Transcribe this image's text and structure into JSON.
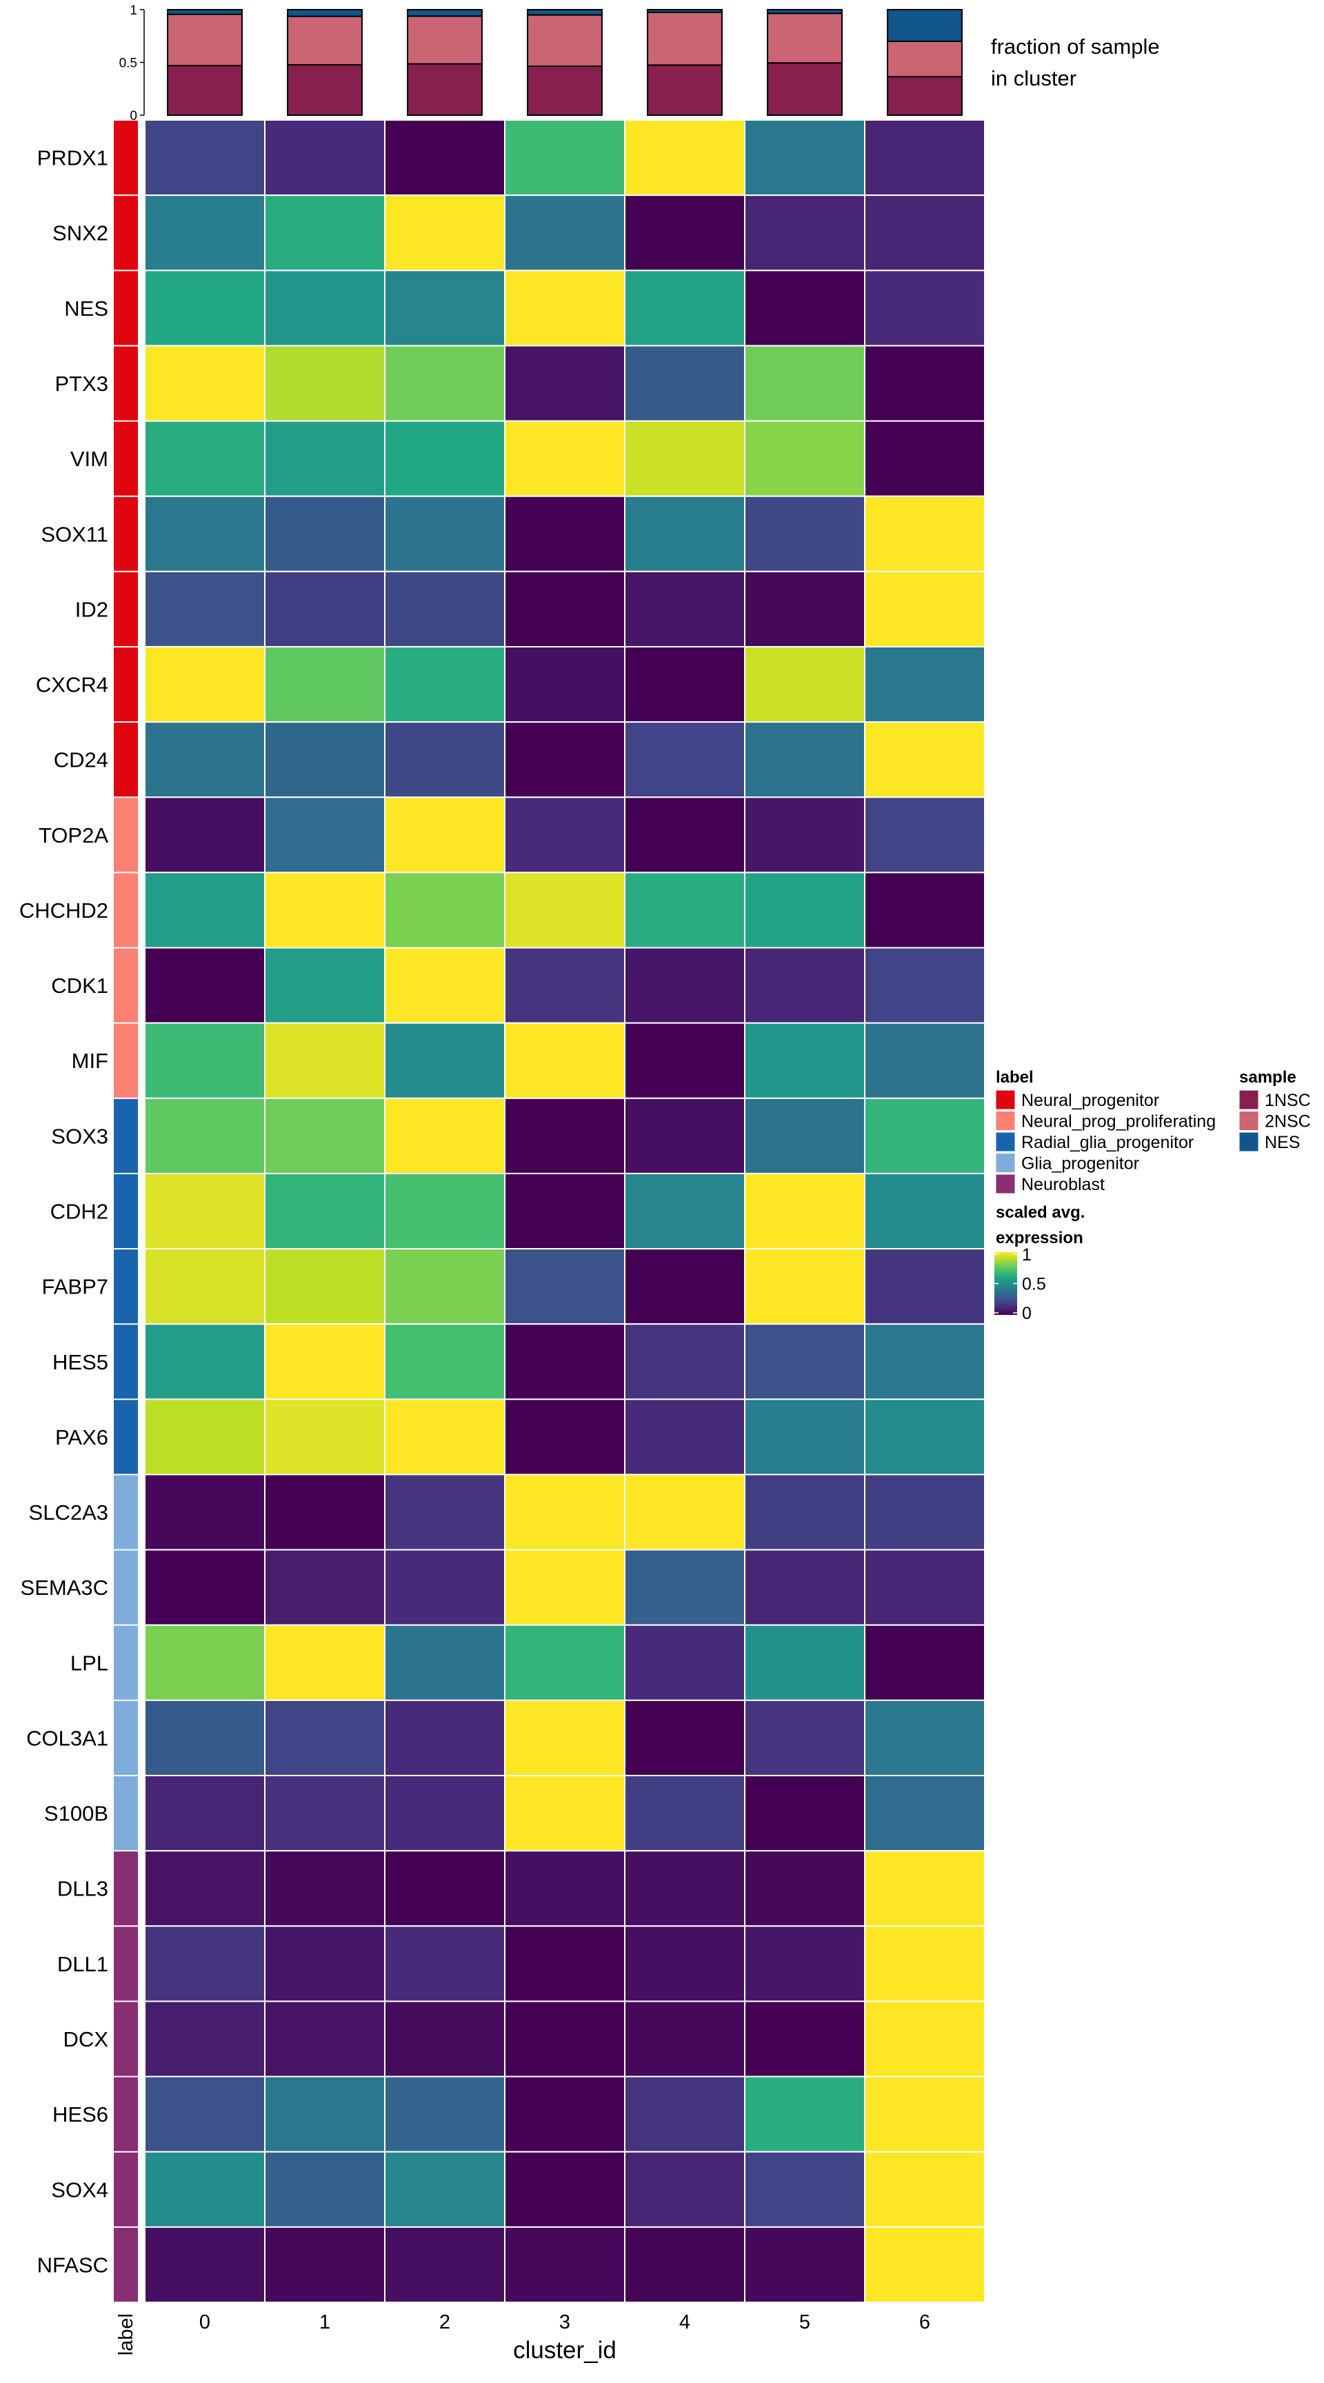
{
  "chart_data": [
    {
      "type": "bar",
      "stacked": true,
      "title": "fraction of sample in cluster",
      "title_lines": [
        "fraction of sample",
        "in cluster"
      ],
      "categories": [
        "0",
        "1",
        "2",
        "3",
        "4",
        "5",
        "6"
      ],
      "ylim": [
        0,
        1
      ],
      "yticks": [
        "0",
        "0.5",
        "1"
      ],
      "series": [
        {
          "name": "1NSC",
          "color": "#88204f",
          "values": [
            0.47,
            0.477,
            0.486,
            0.464,
            0.475,
            0.495,
            0.365
          ]
        },
        {
          "name": "2NSC",
          "color": "#cb6573",
          "values": [
            0.486,
            0.46,
            0.453,
            0.486,
            0.499,
            0.47,
            0.335
          ]
        },
        {
          "name": "NES",
          "color": "#10568a",
          "values": [
            0.044,
            0.063,
            0.061,
            0.05,
            0.026,
            0.035,
            0.3
          ]
        }
      ]
    },
    {
      "type": "heatmap",
      "xlabel": "cluster_id",
      "row_annotation_label": "label",
      "x_categories": [
        "0",
        "1",
        "2",
        "3",
        "4",
        "5",
        "6"
      ],
      "rows": [
        {
          "gene": "PRDX1",
          "label": "Neural_progenitor",
          "values": [
            0.2,
            0.12,
            0,
            0.68,
            1,
            0.4,
            0.1
          ]
        },
        {
          "gene": "SNX2",
          "label": "Neural_progenitor",
          "values": [
            0.42,
            0.62,
            1,
            0.38,
            0,
            0.1,
            0.1
          ]
        },
        {
          "gene": "NES",
          "label": "Neural_progenitor",
          "values": [
            0.6,
            0.52,
            0.45,
            1,
            0.58,
            0,
            0.12
          ]
        },
        {
          "gene": "PTX3",
          "label": "Neural_progenitor",
          "values": [
            1,
            0.88,
            0.78,
            0.05,
            0.28,
            0.78,
            0
          ]
        },
        {
          "gene": "VIM",
          "label": "Neural_progenitor",
          "values": [
            0.62,
            0.55,
            0.6,
            1,
            0.92,
            0.82,
            0
          ]
        },
        {
          "gene": "SOX11",
          "label": "Neural_progenitor",
          "values": [
            0.4,
            0.28,
            0.38,
            0,
            0.42,
            0.22,
            1
          ]
        },
        {
          "gene": "ID2",
          "label": "Neural_progenitor",
          "values": [
            0.25,
            0.18,
            0.22,
            0,
            0.06,
            0.02,
            1
          ]
        },
        {
          "gene": "CXCR4",
          "label": "Neural_progenitor",
          "values": [
            1,
            0.75,
            0.62,
            0.04,
            0,
            0.92,
            0.4
          ]
        },
        {
          "gene": "CD24",
          "label": "Neural_progenitor",
          "values": [
            0.38,
            0.33,
            0.22,
            0,
            0.2,
            0.38,
            1
          ]
        },
        {
          "gene": "TOP2A",
          "label": "Neural_prog_proliferating",
          "values": [
            0.04,
            0.35,
            1,
            0.12,
            0,
            0.06,
            0.2
          ]
        },
        {
          "gene": "CHCHD2",
          "label": "Neural_prog_proliferating",
          "values": [
            0.55,
            1,
            0.8,
            0.95,
            0.62,
            0.58,
            0
          ]
        },
        {
          "gene": "CDK1",
          "label": "Neural_prog_proliferating",
          "values": [
            0,
            0.55,
            1,
            0.15,
            0.06,
            0.1,
            0.2
          ]
        },
        {
          "gene": "MIF",
          "label": "Neural_prog_proliferating",
          "values": [
            0.68,
            0.95,
            0.48,
            1,
            0,
            0.52,
            0.38
          ]
        },
        {
          "gene": "SOX3",
          "label": "Radial_glia_progenitor",
          "values": [
            0.75,
            0.78,
            1,
            0,
            0.04,
            0.38,
            0.65
          ]
        },
        {
          "gene": "CDH2",
          "label": "Radial_glia_progenitor",
          "values": [
            0.95,
            0.65,
            0.7,
            0,
            0.45,
            1,
            0.48
          ]
        },
        {
          "gene": "FABP7",
          "label": "Radial_glia_progenitor",
          "values": [
            0.94,
            0.9,
            0.8,
            0.25,
            0,
            1,
            0.15
          ]
        },
        {
          "gene": "HES5",
          "label": "Radial_glia_progenitor",
          "values": [
            0.55,
            1,
            0.7,
            0,
            0.15,
            0.25,
            0.4
          ]
        },
        {
          "gene": "PAX6",
          "label": "Radial_glia_progenitor",
          "values": [
            0.9,
            0.95,
            1,
            0,
            0.12,
            0.42,
            0.48
          ]
        },
        {
          "gene": "SLC2A3",
          "label": "Glia_progenitor",
          "values": [
            0.02,
            0,
            0.15,
            1,
            1,
            0.18,
            0.18
          ]
        },
        {
          "gene": "SEMA3C",
          "label": "Glia_progenitor",
          "values": [
            0,
            0.08,
            0.12,
            1,
            0.3,
            0.1,
            0.1
          ]
        },
        {
          "gene": "LPL",
          "label": "Glia_progenitor",
          "values": [
            0.8,
            1,
            0.38,
            0.65,
            0.12,
            0.5,
            0
          ]
        },
        {
          "gene": "COL3A1",
          "label": "Glia_progenitor",
          "values": [
            0.28,
            0.2,
            0.12,
            1,
            0,
            0.15,
            0.4
          ]
        },
        {
          "gene": "S100B",
          "label": "Glia_progenitor",
          "values": [
            0.1,
            0.14,
            0.12,
            1,
            0.18,
            0,
            0.35
          ]
        },
        {
          "gene": "DLL3",
          "label": "Neuroblast",
          "values": [
            0.05,
            0.02,
            0,
            0.04,
            0.04,
            0.02,
            1
          ]
        },
        {
          "gene": "DLL1",
          "label": "Neuroblast",
          "values": [
            0.15,
            0.06,
            0.12,
            0,
            0.04,
            0.06,
            1
          ]
        },
        {
          "gene": "DCX",
          "label": "Neuroblast",
          "values": [
            0.08,
            0.05,
            0.03,
            0,
            0.02,
            0,
            1
          ]
        },
        {
          "gene": "HES6",
          "label": "Neuroblast",
          "values": [
            0.25,
            0.4,
            0.32,
            0,
            0.15,
            0.62,
            1
          ]
        },
        {
          "gene": "SOX4",
          "label": "Neuroblast",
          "values": [
            0.48,
            0.3,
            0.45,
            0,
            0.1,
            0.2,
            1
          ]
        },
        {
          "gene": "NFASC",
          "label": "Neuroblast",
          "values": [
            0.04,
            0.02,
            0.04,
            0.02,
            0.01,
            0.02,
            1
          ]
        }
      ],
      "color_scale": {
        "name": "viridis",
        "title_lines": [
          "scaled avg.",
          "expression"
        ],
        "range": [
          0,
          1
        ],
        "ticks": [
          "0",
          "0.5",
          "1"
        ],
        "stops": [
          "#440154",
          "#482475",
          "#414487",
          "#355f8d",
          "#2a788e",
          "#21918c",
          "#22a884",
          "#44bf70",
          "#7ad151",
          "#bddf26",
          "#fde725"
        ]
      }
    }
  ],
  "legend": {
    "label": {
      "title": "label",
      "items": [
        {
          "name": "Neural_progenitor",
          "color": "#e0060f"
        },
        {
          "name": "Neural_prog_proliferating",
          "color": "#fa8072"
        },
        {
          "name": "Radial_glia_progenitor",
          "color": "#1a64ad"
        },
        {
          "name": "Glia_progenitor",
          "color": "#7eaddc"
        },
        {
          "name": "Neuroblast",
          "color": "#882e72"
        }
      ]
    },
    "sample": {
      "title": "sample",
      "items": [
        {
          "name": "1NSC",
          "color": "#88204f"
        },
        {
          "name": "2NSC",
          "color": "#cb6573"
        },
        {
          "name": "NES",
          "color": "#10568a"
        }
      ]
    }
  }
}
